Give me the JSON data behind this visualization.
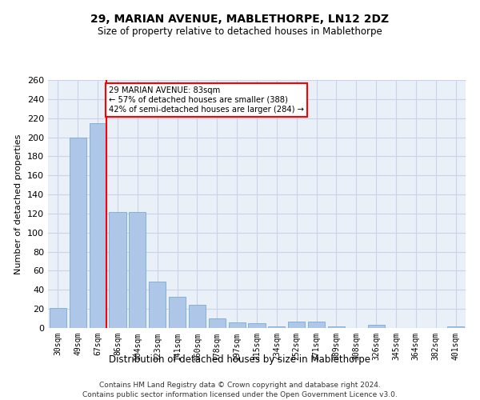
{
  "title1": "29, MARIAN AVENUE, MABLETHORPE, LN12 2DZ",
  "title2": "Size of property relative to detached houses in Mablethorpe",
  "xlabel": "Distribution of detached houses by size in Mablethorpe",
  "ylabel": "Number of detached properties",
  "bar_color": "#aec6e8",
  "bar_edge_color": "#7aaad0",
  "categories": [
    "30sqm",
    "49sqm",
    "67sqm",
    "86sqm",
    "104sqm",
    "123sqm",
    "141sqm",
    "160sqm",
    "178sqm",
    "197sqm",
    "215sqm",
    "234sqm",
    "252sqm",
    "271sqm",
    "289sqm",
    "308sqm",
    "326sqm",
    "345sqm",
    "364sqm",
    "382sqm",
    "401sqm"
  ],
  "values": [
    21,
    200,
    215,
    122,
    122,
    49,
    33,
    24,
    10,
    6,
    5,
    2,
    7,
    7,
    2,
    0,
    3,
    0,
    0,
    0,
    2
  ],
  "annotation_line1": "29 MARIAN AVENUE: 83sqm",
  "annotation_line2": "← 57% of detached houses are smaller (388)",
  "annotation_line3": "42% of semi-detached houses are larger (284) →",
  "annotation_box_color": "white",
  "annotation_box_edge": "red",
  "vline_color": "red",
  "ylim": [
    0,
    260
  ],
  "footer_line1": "Contains HM Land Registry data © Crown copyright and database right 2024.",
  "footer_line2": "Contains public sector information licensed under the Open Government Licence v3.0.",
  "bg_color": "#eaf0f8",
  "grid_color": "#c8d4e8"
}
